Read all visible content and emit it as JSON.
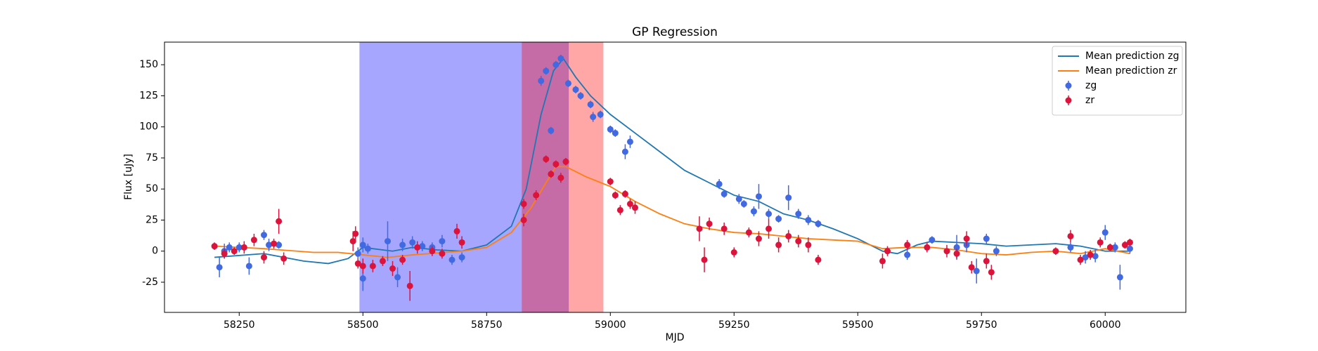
{
  "chart_data": {
    "type": "scatter",
    "title": "GP Regression",
    "x_label": "MJD",
    "y_label": "Flux [uJy]",
    "xlim": [
      58099,
      60163
    ],
    "ylim": [
      -49.3,
      168.2
    ],
    "xticks": [
      58250,
      58500,
      58750,
      59000,
      59250,
      59500,
      59750,
      60000
    ],
    "yticks": [
      -25,
      0,
      25,
      50,
      75,
      100,
      125,
      150
    ],
    "legend": "upper right",
    "spans": [
      {
        "xmin": 58493,
        "xmax": 58916,
        "color": "#0000ff"
      },
      {
        "xmin": 58821,
        "xmax": 58986,
        "color": "#ff0000"
      }
    ],
    "series": [
      {
        "name": "Mean prediction zg",
        "kind": "line",
        "color": "#1f77b4",
        "x": [
          58200,
          58300,
          58380,
          58430,
          58470,
          58500,
          58560,
          58600,
          58650,
          58700,
          58750,
          58800,
          58830,
          58860,
          58885,
          58905,
          58930,
          58960,
          59000,
          59050,
          59100,
          59150,
          59200,
          59250,
          59300,
          59350,
          59400,
          59450,
          59500,
          59550,
          59580,
          59620,
          59650,
          59700,
          59750,
          59800,
          59850,
          59900,
          59950,
          60000,
          60050
        ],
        "values": [
          -5,
          -2,
          -8,
          -10,
          -6,
          3,
          0,
          3,
          1,
          0,
          5,
          20,
          50,
          110,
          145,
          155,
          140,
          125,
          110,
          95,
          80,
          65,
          55,
          45,
          40,
          30,
          25,
          18,
          10,
          0,
          -2,
          5,
          8,
          7,
          6,
          4,
          5,
          6,
          4,
          0,
          0
        ]
      },
      {
        "name": "Mean prediction zr",
        "kind": "line",
        "color": "#ff7f0e",
        "x": [
          58200,
          58300,
          58400,
          58450,
          58500,
          58550,
          58600,
          58700,
          58750,
          58800,
          58840,
          58870,
          58890,
          58910,
          58950,
          59000,
          59050,
          59100,
          59150,
          59200,
          59250,
          59300,
          59350,
          59400,
          59450,
          59500,
          59550,
          59600,
          59650,
          59700,
          59750,
          59800,
          59850,
          59900,
          59950,
          60000,
          60050
        ],
        "values": [
          4,
          2,
          -1,
          -1,
          -3,
          -5,
          -3,
          0,
          3,
          15,
          35,
          55,
          68,
          68,
          60,
          52,
          40,
          30,
          22,
          18,
          15,
          14,
          12,
          10,
          9,
          8,
          2,
          3,
          3,
          1,
          -2,
          -3,
          -1,
          0,
          -2,
          2,
          -2
        ]
      },
      {
        "name": "zg",
        "kind": "errorbar",
        "color": "#4169e1",
        "x": [
          58210,
          58220,
          58230,
          58250,
          58270,
          58300,
          58310,
          58330,
          58490,
          58500,
          58500,
          58510,
          58550,
          58570,
          58580,
          58600,
          58620,
          58640,
          58660,
          58680,
          58700,
          58880,
          58860,
          58870,
          58890,
          58900,
          58915,
          58930,
          58940,
          58960,
          58965,
          58980,
          59000,
          59010,
          59030,
          59040,
          59220,
          59230,
          59260,
          59270,
          59290,
          59300,
          59320,
          59340,
          59360,
          59380,
          59400,
          59420,
          59600,
          59650,
          59700,
          59720,
          59740,
          59760,
          59780,
          59930,
          59960,
          59980,
          60000,
          60020,
          60030,
          60050
        ],
        "values": [
          -13,
          0,
          3,
          3,
          -12,
          13,
          5,
          5,
          -2,
          5,
          -22,
          2,
          8,
          -21,
          5,
          7,
          4,
          3,
          8,
          -7,
          -5,
          97,
          137,
          145,
          150,
          155,
          135,
          130,
          125,
          118,
          108,
          110,
          98,
          95,
          80,
          88,
          54,
          46,
          42,
          38,
          32,
          44,
          30,
          26,
          43,
          30,
          25,
          22,
          -3,
          9,
          3,
          5,
          -16,
          10,
          0,
          3,
          -5,
          -4,
          15,
          3,
          -21,
          2
        ],
        "errors": [
          8,
          6,
          4,
          4,
          7,
          4,
          5,
          3,
          5,
          6,
          10,
          4,
          16,
          8,
          5,
          5,
          4,
          4,
          5,
          4,
          4,
          3,
          4,
          3,
          3,
          3,
          3,
          3,
          3,
          3,
          4,
          3,
          3,
          3,
          6,
          5,
          4,
          3,
          4,
          3,
          4,
          10,
          4,
          3,
          10,
          4,
          4,
          3,
          4,
          3,
          10,
          6,
          10,
          4,
          4,
          4,
          5,
          5,
          6,
          4,
          10,
          4
        ]
      },
      {
        "name": "zr",
        "kind": "errorbar",
        "color": "#dc143c",
        "x": [
          58200,
          58220,
          58240,
          58260,
          58280,
          58300,
          58320,
          58330,
          58340,
          58480,
          58485,
          58490,
          58500,
          58520,
          58540,
          58560,
          58580,
          58595,
          58610,
          58640,
          58660,
          58690,
          58700,
          58825,
          58825,
          58850,
          58870,
          58880,
          58890,
          58900,
          58910,
          59000,
          59010,
          59020,
          59030,
          59040,
          59050,
          59180,
          59190,
          59200,
          59230,
          59250,
          59280,
          59300,
          59320,
          59340,
          59360,
          59380,
          59400,
          59420,
          59550,
          59560,
          59600,
          59640,
          59680,
          59700,
          59720,
          59730,
          59760,
          59770,
          59900,
          59930,
          59950,
          59970,
          59990,
          60010,
          60040,
          60050
        ],
        "values": [
          4,
          -2,
          0,
          3,
          9,
          -5,
          6,
          24,
          -6,
          8,
          14,
          -10,
          -12,
          -12,
          -8,
          -14,
          -7,
          -28,
          3,
          0,
          -2,
          16,
          7,
          25,
          38,
          45,
          74,
          62,
          70,
          59,
          72,
          56,
          45,
          33,
          46,
          38,
          35,
          18,
          -7,
          22,
          18,
          -1,
          15,
          10,
          18,
          5,
          12,
          8,
          5,
          -7,
          -8,
          0,
          5,
          3,
          0,
          -2,
          10,
          -13,
          -8,
          -17,
          0,
          12,
          -7,
          -3,
          7,
          3,
          5,
          7
        ],
        "errors": [
          3,
          4,
          3,
          5,
          5,
          5,
          4,
          10,
          5,
          8,
          6,
          4,
          6,
          5,
          4,
          6,
          4,
          12,
          5,
          4,
          4,
          6,
          5,
          5,
          4,
          4,
          3,
          3,
          3,
          4,
          3,
          3,
          3,
          4,
          3,
          4,
          5,
          10,
          10,
          5,
          5,
          4,
          4,
          6,
          8,
          6,
          5,
          5,
          6,
          4,
          6,
          4,
          4,
          4,
          5,
          4,
          6,
          5,
          6,
          6,
          3,
          5,
          4,
          4,
          4,
          3,
          3,
          3
        ]
      }
    ]
  }
}
